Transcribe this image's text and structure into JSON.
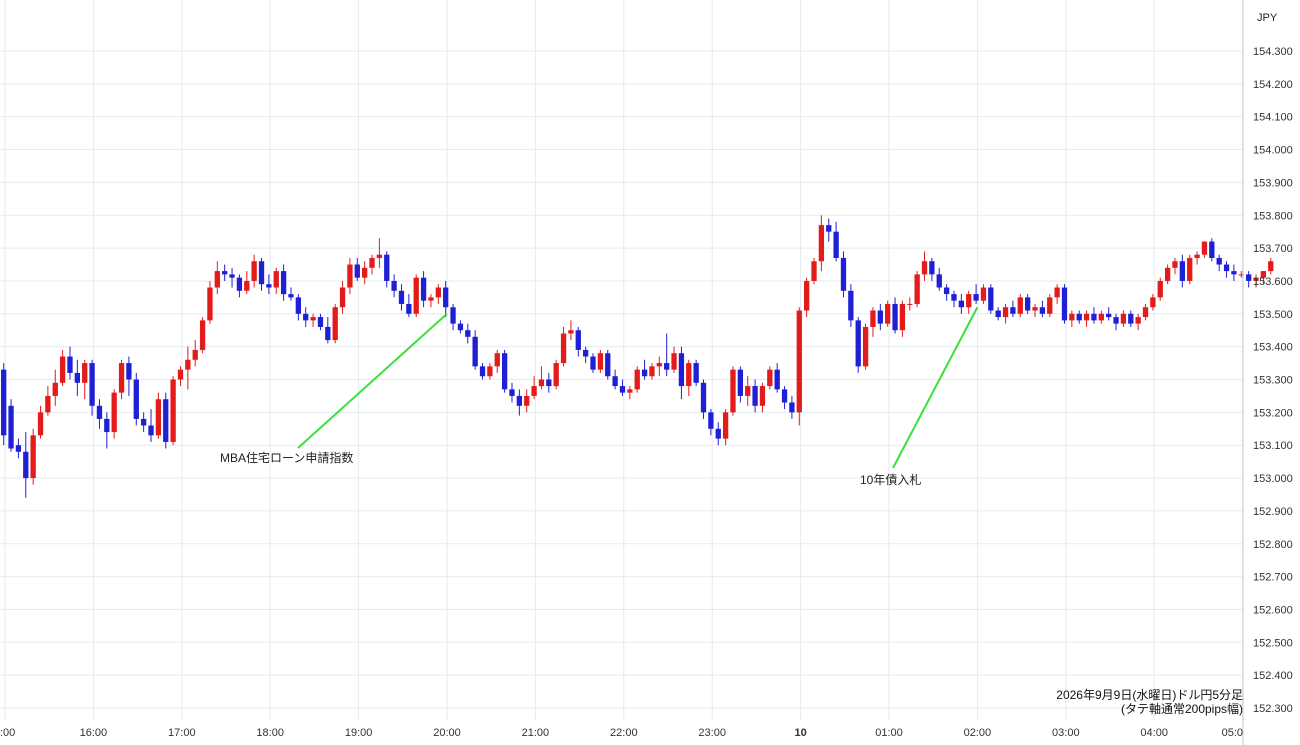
{
  "chart_data": {
    "type": "candlestick",
    "currency": "JPY",
    "caption_line1": "2026年9月9日(水曜日)ドル円5分足",
    "caption_line2": "(タテ軸通常200pips幅)",
    "ylim": [
      152.25,
      154.4
    ],
    "y_ticks": [
      "154.300",
      "154.200",
      "154.100",
      "154.000",
      "153.900",
      "153.800",
      "153.700",
      "153.600",
      "153.500",
      "153.400",
      "153.300",
      "153.200",
      "153.100",
      "153.000",
      "152.900",
      "152.800",
      "152.700",
      "152.600",
      "152.500",
      "152.400",
      "152.300"
    ],
    "x_ticks": [
      ":00",
      "16:00",
      "17:00",
      "18:00",
      "19:00",
      "20:00",
      "21:00",
      "22:00",
      "23:00",
      "10",
      "01:00",
      "02:00",
      "03:00",
      "04:00",
      "05:0"
    ],
    "grid": true,
    "up_color": "#e31b1b",
    "down_color": "#1f1fd6",
    "annotations": [
      {
        "label": "MBA住宅ローン申請指数",
        "time": "20:00",
        "price": 153.5
      },
      {
        "label": "10年債入札",
        "time": "02:00",
        "price": 153.52
      }
    ],
    "candles": [
      {
        "o": 153.33,
        "h": 153.35,
        "l": 153.1,
        "c": 153.13
      },
      {
        "o": 153.22,
        "h": 153.24,
        "l": 153.08,
        "c": 153.09
      },
      {
        "o": 153.1,
        "h": 153.12,
        "l": 153.06,
        "c": 153.08
      },
      {
        "o": 153.08,
        "h": 153.14,
        "l": 152.94,
        "c": 153.0
      },
      {
        "o": 153.0,
        "h": 153.15,
        "l": 152.98,
        "c": 153.13
      },
      {
        "o": 153.13,
        "h": 153.22,
        "l": 153.12,
        "c": 153.2
      },
      {
        "o": 153.2,
        "h": 153.28,
        "l": 153.19,
        "c": 153.25
      },
      {
        "o": 153.25,
        "h": 153.33,
        "l": 153.22,
        "c": 153.29
      },
      {
        "o": 153.29,
        "h": 153.39,
        "l": 153.28,
        "c": 153.37
      },
      {
        "o": 153.37,
        "h": 153.4,
        "l": 153.3,
        "c": 153.32
      },
      {
        "o": 153.32,
        "h": 153.36,
        "l": 153.25,
        "c": 153.29
      },
      {
        "o": 153.29,
        "h": 153.36,
        "l": 153.24,
        "c": 153.35
      },
      {
        "o": 153.35,
        "h": 153.36,
        "l": 153.19,
        "c": 153.22
      },
      {
        "o": 153.22,
        "h": 153.24,
        "l": 153.15,
        "c": 153.18
      },
      {
        "o": 153.18,
        "h": 153.2,
        "l": 153.09,
        "c": 153.14
      },
      {
        "o": 153.14,
        "h": 153.27,
        "l": 153.12,
        "c": 153.26
      },
      {
        "o": 153.26,
        "h": 153.36,
        "l": 153.24,
        "c": 153.35
      },
      {
        "o": 153.35,
        "h": 153.37,
        "l": 153.25,
        "c": 153.3
      },
      {
        "o": 153.3,
        "h": 153.32,
        "l": 153.16,
        "c": 153.18
      },
      {
        "o": 153.18,
        "h": 153.2,
        "l": 153.14,
        "c": 153.16
      },
      {
        "o": 153.16,
        "h": 153.21,
        "l": 153.11,
        "c": 153.13
      },
      {
        "o": 153.13,
        "h": 153.26,
        "l": 153.12,
        "c": 153.24
      },
      {
        "o": 153.24,
        "h": 153.26,
        "l": 153.09,
        "c": 153.11
      },
      {
        "o": 153.11,
        "h": 153.31,
        "l": 153.1,
        "c": 153.3
      },
      {
        "o": 153.3,
        "h": 153.34,
        "l": 153.28,
        "c": 153.33
      },
      {
        "o": 153.33,
        "h": 153.4,
        "l": 153.27,
        "c": 153.36
      },
      {
        "o": 153.36,
        "h": 153.42,
        "l": 153.34,
        "c": 153.39
      },
      {
        "o": 153.39,
        "h": 153.49,
        "l": 153.38,
        "c": 153.48
      },
      {
        "o": 153.48,
        "h": 153.6,
        "l": 153.47,
        "c": 153.58
      },
      {
        "o": 153.58,
        "h": 153.66,
        "l": 153.56,
        "c": 153.63
      },
      {
        "o": 153.63,
        "h": 153.65,
        "l": 153.6,
        "c": 153.62
      },
      {
        "o": 153.62,
        "h": 153.64,
        "l": 153.58,
        "c": 153.61
      },
      {
        "o": 153.61,
        "h": 153.62,
        "l": 153.55,
        "c": 153.57
      },
      {
        "o": 153.57,
        "h": 153.63,
        "l": 153.56,
        "c": 153.6
      },
      {
        "o": 153.6,
        "h": 153.68,
        "l": 153.58,
        "c": 153.66
      },
      {
        "o": 153.66,
        "h": 153.67,
        "l": 153.57,
        "c": 153.59
      },
      {
        "o": 153.59,
        "h": 153.62,
        "l": 153.56,
        "c": 153.58
      },
      {
        "o": 153.58,
        "h": 153.64,
        "l": 153.56,
        "c": 153.63
      },
      {
        "o": 153.63,
        "h": 153.65,
        "l": 153.54,
        "c": 153.56
      },
      {
        "o": 153.56,
        "h": 153.58,
        "l": 153.54,
        "c": 153.55
      },
      {
        "o": 153.55,
        "h": 153.56,
        "l": 153.48,
        "c": 153.5
      },
      {
        "o": 153.5,
        "h": 153.52,
        "l": 153.46,
        "c": 153.48
      },
      {
        "o": 153.48,
        "h": 153.5,
        "l": 153.46,
        "c": 153.49
      },
      {
        "o": 153.49,
        "h": 153.5,
        "l": 153.45,
        "c": 153.46
      },
      {
        "o": 153.46,
        "h": 153.49,
        "l": 153.41,
        "c": 153.42
      },
      {
        "o": 153.42,
        "h": 153.53,
        "l": 153.41,
        "c": 153.52
      },
      {
        "o": 153.52,
        "h": 153.6,
        "l": 153.5,
        "c": 153.58
      },
      {
        "o": 153.58,
        "h": 153.67,
        "l": 153.56,
        "c": 153.65
      },
      {
        "o": 153.65,
        "h": 153.67,
        "l": 153.6,
        "c": 153.61
      },
      {
        "o": 153.61,
        "h": 153.66,
        "l": 153.59,
        "c": 153.64
      },
      {
        "o": 153.64,
        "h": 153.68,
        "l": 153.62,
        "c": 153.67
      },
      {
        "o": 153.67,
        "h": 153.73,
        "l": 153.64,
        "c": 153.68
      },
      {
        "o": 153.68,
        "h": 153.69,
        "l": 153.58,
        "c": 153.6
      },
      {
        "o": 153.6,
        "h": 153.62,
        "l": 153.55,
        "c": 153.57
      },
      {
        "o": 153.57,
        "h": 153.59,
        "l": 153.51,
        "c": 153.53
      },
      {
        "o": 153.53,
        "h": 153.56,
        "l": 153.49,
        "c": 153.5
      },
      {
        "o": 153.5,
        "h": 153.62,
        "l": 153.49,
        "c": 153.61
      },
      {
        "o": 153.61,
        "h": 153.63,
        "l": 153.52,
        "c": 153.54
      },
      {
        "o": 153.54,
        "h": 153.56,
        "l": 153.52,
        "c": 153.55
      },
      {
        "o": 153.55,
        "h": 153.59,
        "l": 153.53,
        "c": 153.58
      },
      {
        "o": 153.58,
        "h": 153.6,
        "l": 153.49,
        "c": 153.52
      },
      {
        "o": 153.52,
        "h": 153.53,
        "l": 153.45,
        "c": 153.47
      },
      {
        "o": 153.47,
        "h": 153.48,
        "l": 153.44,
        "c": 153.45
      },
      {
        "o": 153.45,
        "h": 153.47,
        "l": 153.41,
        "c": 153.43
      },
      {
        "o": 153.43,
        "h": 153.45,
        "l": 153.33,
        "c": 153.34
      },
      {
        "o": 153.34,
        "h": 153.35,
        "l": 153.3,
        "c": 153.31
      },
      {
        "o": 153.31,
        "h": 153.35,
        "l": 153.3,
        "c": 153.34
      },
      {
        "o": 153.34,
        "h": 153.39,
        "l": 153.32,
        "c": 153.38
      },
      {
        "o": 153.38,
        "h": 153.39,
        "l": 153.26,
        "c": 153.27
      },
      {
        "o": 153.27,
        "h": 153.29,
        "l": 153.23,
        "c": 153.25
      },
      {
        "o": 153.25,
        "h": 153.27,
        "l": 153.19,
        "c": 153.22
      },
      {
        "o": 153.22,
        "h": 153.27,
        "l": 153.2,
        "c": 153.25
      },
      {
        "o": 153.25,
        "h": 153.31,
        "l": 153.24,
        "c": 153.28
      },
      {
        "o": 153.28,
        "h": 153.34,
        "l": 153.27,
        "c": 153.3
      },
      {
        "o": 153.3,
        "h": 153.32,
        "l": 153.26,
        "c": 153.28
      },
      {
        "o": 153.28,
        "h": 153.36,
        "l": 153.27,
        "c": 153.35
      },
      {
        "o": 153.35,
        "h": 153.46,
        "l": 153.34,
        "c": 153.44
      },
      {
        "o": 153.44,
        "h": 153.48,
        "l": 153.42,
        "c": 153.45
      },
      {
        "o": 153.45,
        "h": 153.46,
        "l": 153.37,
        "c": 153.39
      },
      {
        "o": 153.39,
        "h": 153.4,
        "l": 153.35,
        "c": 153.37
      },
      {
        "o": 153.37,
        "h": 153.38,
        "l": 153.32,
        "c": 153.33
      },
      {
        "o": 153.33,
        "h": 153.39,
        "l": 153.32,
        "c": 153.38
      },
      {
        "o": 153.38,
        "h": 153.39,
        "l": 153.3,
        "c": 153.31
      },
      {
        "o": 153.31,
        "h": 153.33,
        "l": 153.27,
        "c": 153.28
      },
      {
        "o": 153.28,
        "h": 153.3,
        "l": 153.25,
        "c": 153.26
      },
      {
        "o": 153.26,
        "h": 153.28,
        "l": 153.24,
        "c": 153.27
      },
      {
        "o": 153.27,
        "h": 153.34,
        "l": 153.26,
        "c": 153.33
      },
      {
        "o": 153.33,
        "h": 153.36,
        "l": 153.3,
        "c": 153.31
      },
      {
        "o": 153.31,
        "h": 153.35,
        "l": 153.3,
        "c": 153.34
      },
      {
        "o": 153.34,
        "h": 153.37,
        "l": 153.31,
        "c": 153.35
      },
      {
        "o": 153.35,
        "h": 153.44,
        "l": 153.31,
        "c": 153.33
      },
      {
        "o": 153.33,
        "h": 153.4,
        "l": 153.32,
        "c": 153.38
      },
      {
        "o": 153.38,
        "h": 153.4,
        "l": 153.24,
        "c": 153.28
      },
      {
        "o": 153.28,
        "h": 153.36,
        "l": 153.25,
        "c": 153.35
      },
      {
        "o": 153.35,
        "h": 153.36,
        "l": 153.28,
        "c": 153.29
      },
      {
        "o": 153.29,
        "h": 153.3,
        "l": 153.18,
        "c": 153.2
      },
      {
        "o": 153.2,
        "h": 153.21,
        "l": 153.13,
        "c": 153.15
      },
      {
        "o": 153.15,
        "h": 153.17,
        "l": 153.1,
        "c": 153.12
      },
      {
        "o": 153.12,
        "h": 153.21,
        "l": 153.1,
        "c": 153.2
      },
      {
        "o": 153.2,
        "h": 153.34,
        "l": 153.19,
        "c": 153.33
      },
      {
        "o": 153.33,
        "h": 153.34,
        "l": 153.23,
        "c": 153.25
      },
      {
        "o": 153.25,
        "h": 153.31,
        "l": 153.22,
        "c": 153.28
      },
      {
        "o": 153.28,
        "h": 153.3,
        "l": 153.2,
        "c": 153.22
      },
      {
        "o": 153.22,
        "h": 153.29,
        "l": 153.2,
        "c": 153.28
      },
      {
        "o": 153.28,
        "h": 153.34,
        "l": 153.27,
        "c": 153.33
      },
      {
        "o": 153.33,
        "h": 153.35,
        "l": 153.26,
        "c": 153.27
      },
      {
        "o": 153.27,
        "h": 153.28,
        "l": 153.21,
        "c": 153.23
      },
      {
        "o": 153.23,
        "h": 153.25,
        "l": 153.18,
        "c": 153.2
      },
      {
        "o": 153.2,
        "h": 153.52,
        "l": 153.16,
        "c": 153.51
      },
      {
        "o": 153.51,
        "h": 153.61,
        "l": 153.49,
        "c": 153.6
      },
      {
        "o": 153.6,
        "h": 153.67,
        "l": 153.59,
        "c": 153.66
      },
      {
        "o": 153.66,
        "h": 153.8,
        "l": 153.63,
        "c": 153.77
      },
      {
        "o": 153.77,
        "h": 153.79,
        "l": 153.72,
        "c": 153.75
      },
      {
        "o": 153.75,
        "h": 153.78,
        "l": 153.66,
        "c": 153.67
      },
      {
        "o": 153.67,
        "h": 153.69,
        "l": 153.55,
        "c": 153.57
      },
      {
        "o": 153.57,
        "h": 153.59,
        "l": 153.46,
        "c": 153.48
      },
      {
        "o": 153.48,
        "h": 153.49,
        "l": 153.32,
        "c": 153.34
      },
      {
        "o": 153.34,
        "h": 153.47,
        "l": 153.33,
        "c": 153.46
      },
      {
        "o": 153.46,
        "h": 153.52,
        "l": 153.43,
        "c": 153.51
      },
      {
        "o": 153.51,
        "h": 153.53,
        "l": 153.45,
        "c": 153.47
      },
      {
        "o": 153.47,
        "h": 153.54,
        "l": 153.46,
        "c": 153.53
      },
      {
        "o": 153.53,
        "h": 153.55,
        "l": 153.44,
        "c": 153.45
      },
      {
        "o": 153.45,
        "h": 153.54,
        "l": 153.43,
        "c": 153.53
      },
      {
        "o": 153.53,
        "h": 153.55,
        "l": 153.51,
        "c": 153.53
      },
      {
        "o": 153.53,
        "h": 153.63,
        "l": 153.52,
        "c": 153.62
      },
      {
        "o": 153.62,
        "h": 153.69,
        "l": 153.6,
        "c": 153.66
      },
      {
        "o": 153.66,
        "h": 153.67,
        "l": 153.6,
        "c": 153.62
      },
      {
        "o": 153.62,
        "h": 153.64,
        "l": 153.57,
        "c": 153.58
      },
      {
        "o": 153.58,
        "h": 153.59,
        "l": 153.54,
        "c": 153.56
      },
      {
        "o": 153.56,
        "h": 153.57,
        "l": 153.52,
        "c": 153.54
      },
      {
        "o": 153.54,
        "h": 153.56,
        "l": 153.5,
        "c": 153.52
      },
      {
        "o": 153.52,
        "h": 153.57,
        "l": 153.5,
        "c": 153.56
      },
      {
        "o": 153.56,
        "h": 153.59,
        "l": 153.53,
        "c": 153.54
      },
      {
        "o": 153.54,
        "h": 153.59,
        "l": 153.53,
        "c": 153.58
      },
      {
        "o": 153.58,
        "h": 153.59,
        "l": 153.5,
        "c": 153.51
      },
      {
        "o": 153.51,
        "h": 153.52,
        "l": 153.48,
        "c": 153.49
      },
      {
        "o": 153.49,
        "h": 153.53,
        "l": 153.47,
        "c": 153.52
      },
      {
        "o": 153.52,
        "h": 153.54,
        "l": 153.49,
        "c": 153.5
      },
      {
        "o": 153.5,
        "h": 153.56,
        "l": 153.49,
        "c": 153.55
      },
      {
        "o": 153.55,
        "h": 153.56,
        "l": 153.5,
        "c": 153.51
      },
      {
        "o": 153.51,
        "h": 153.53,
        "l": 153.49,
        "c": 153.52
      },
      {
        "o": 153.52,
        "h": 153.54,
        "l": 153.49,
        "c": 153.5
      },
      {
        "o": 153.5,
        "h": 153.56,
        "l": 153.49,
        "c": 153.55
      },
      {
        "o": 153.55,
        "h": 153.59,
        "l": 153.53,
        "c": 153.58
      },
      {
        "o": 153.58,
        "h": 153.59,
        "l": 153.47,
        "c": 153.48
      },
      {
        "o": 153.48,
        "h": 153.51,
        "l": 153.46,
        "c": 153.5
      },
      {
        "o": 153.5,
        "h": 153.51,
        "l": 153.47,
        "c": 153.48
      },
      {
        "o": 153.48,
        "h": 153.51,
        "l": 153.46,
        "c": 153.5
      },
      {
        "o": 153.5,
        "h": 153.52,
        "l": 153.47,
        "c": 153.48
      },
      {
        "o": 153.48,
        "h": 153.51,
        "l": 153.47,
        "c": 153.5
      },
      {
        "o": 153.5,
        "h": 153.52,
        "l": 153.48,
        "c": 153.49
      },
      {
        "o": 153.49,
        "h": 153.5,
        "l": 153.45,
        "c": 153.47
      },
      {
        "o": 153.47,
        "h": 153.51,
        "l": 153.46,
        "c": 153.5
      },
      {
        "o": 153.5,
        "h": 153.51,
        "l": 153.46,
        "c": 153.47
      },
      {
        "o": 153.47,
        "h": 153.5,
        "l": 153.45,
        "c": 153.49
      },
      {
        "o": 153.49,
        "h": 153.53,
        "l": 153.48,
        "c": 153.52
      },
      {
        "o": 153.52,
        "h": 153.56,
        "l": 153.51,
        "c": 153.55
      },
      {
        "o": 153.55,
        "h": 153.61,
        "l": 153.54,
        "c": 153.6
      },
      {
        "o": 153.6,
        "h": 153.65,
        "l": 153.59,
        "c": 153.64
      },
      {
        "o": 153.64,
        "h": 153.67,
        "l": 153.62,
        "c": 153.66
      },
      {
        "o": 153.66,
        "h": 153.68,
        "l": 153.58,
        "c": 153.6
      },
      {
        "o": 153.6,
        "h": 153.68,
        "l": 153.59,
        "c": 153.67
      },
      {
        "o": 153.67,
        "h": 153.69,
        "l": 153.65,
        "c": 153.68
      },
      {
        "o": 153.68,
        "h": 153.72,
        "l": 153.67,
        "c": 153.72
      },
      {
        "o": 153.72,
        "h": 153.73,
        "l": 153.66,
        "c": 153.67
      },
      {
        "o": 153.67,
        "h": 153.68,
        "l": 153.63,
        "c": 153.65
      },
      {
        "o": 153.65,
        "h": 153.66,
        "l": 153.61,
        "c": 153.63
      },
      {
        "o": 153.63,
        "h": 153.65,
        "l": 153.6,
        "c": 153.62
      },
      {
        "o": 153.62,
        "h": 153.63,
        "l": 153.61,
        "c": 153.62
      },
      {
        "o": 153.62,
        "h": 153.63,
        "l": 153.58,
        "c": 153.6
      },
      {
        "o": 153.6,
        "h": 153.62,
        "l": 153.58,
        "c": 153.61
      },
      {
        "o": 153.61,
        "h": 153.63,
        "l": 153.59,
        "c": 153.63
      },
      {
        "o": 153.63,
        "h": 153.67,
        "l": 153.62,
        "c": 153.66
      }
    ]
  }
}
